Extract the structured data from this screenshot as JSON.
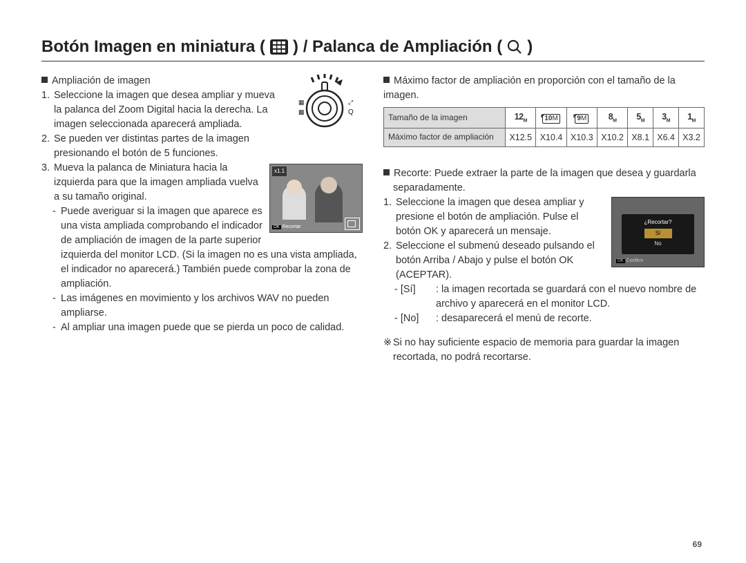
{
  "title": {
    "part1": "Botón Imagen en miniatura (",
    "part2": ") / Palanca de Ampliación (",
    "part3": ")",
    "grid_icon_color": "#222222",
    "magnifier_icon_color": "#222222"
  },
  "left": {
    "heading": "Ampliación de imagen",
    "step1_num": "1.",
    "step1": "Seleccione la imagen que desea ampliar y mueva la palanca del Zoom Digital hacia la derecha. La imagen seleccionada aparecerá ampliada.",
    "step2_num": "2.",
    "step2": "Se pueden ver distintas partes de la imagen presionando el botón de 5 funciones.",
    "step3_num": "3.",
    "step3": "Mueva la palanca de Miniatura hacia la izquierda para que la imagen ampliada vuelva a su tamaño original.",
    "dash1": "Puede averiguar si la imagen que aparece es una vista ampliada comprobando el indicador de ampliación de imagen de la parte superior izquierda del monitor LCD. (Si la imagen no es una vista ampliada, el indicador no aparecerá.) También puede comprobar la zona de ampliación.",
    "dash2": "Las imágenes en movimiento y los archivos WAV no pueden ampliarse.",
    "dash3": "Al ampliar una imagen puede que se pierda un poco de calidad.",
    "preview": {
      "zoom_label": "x1.1",
      "ok_label": "OK",
      "action_label": "Recortar"
    },
    "dial": {
      "left_top_glyph": "▦",
      "left_bottom_glyph": "▩",
      "right_top_glyph": "◖◗",
      "right_bottom_glyph": "Q",
      "stroke": "#222222"
    }
  },
  "right": {
    "heading": "Máximo factor de ampliación en proporción con el tamaño de la imagen.",
    "table": {
      "row1_label": "Tamaño de la imagen",
      "row2_label": "Máximo factor de ampliación",
      "sizes": [
        {
          "text": "12",
          "sub": "M",
          "boxed": false
        },
        {
          "text": "10",
          "sub": "M",
          "boxed": true
        },
        {
          "text": "9",
          "sub": "M",
          "boxed": true
        },
        {
          "text": "8",
          "sub": "M",
          "boxed": false
        },
        {
          "text": "5",
          "sub": "M",
          "boxed": false
        },
        {
          "text": "3",
          "sub": "M",
          "boxed": false
        },
        {
          "text": "1",
          "sub": "M",
          "boxed": false
        }
      ],
      "factors": [
        "X12.5",
        "X10.4",
        "X10.3",
        "X10.2",
        "X8.1",
        "X6.4",
        "X3.2"
      ]
    },
    "recorte_heading": "Recorte: Puede extraer la parte de la imagen que desea y guardarla separadamente.",
    "r_step1_num": "1.",
    "r_step1": "Seleccione la imagen que desea ampliar y presione el botón de ampliación. Pulse el botón OK y aparecerá un mensaje.",
    "r_step2_num": "2.",
    "r_step2": "Seleccione el submenú deseado pulsando el botón Arriba / Abajo y pulse el botón OK (ACEPTAR).",
    "r_si_label": "- [Sí]",
    "r_si_text": ": la imagen recortada se guardará con el nuevo nombre de archivo y aparecerá en el monitor LCD.",
    "r_no_label": "- [No]",
    "r_no_text": ": desaparecerá el menú de recorte.",
    "note": "Si no hay suficiente espacio de memoria para guardar la imagen recortada, no podrá recortarse.",
    "crop_dialog": {
      "question": "¿Recortar?",
      "opt_yes": "Sí",
      "opt_no": "No",
      "confirm": "Confirm",
      "ok": "OK"
    }
  },
  "page_number": "69"
}
